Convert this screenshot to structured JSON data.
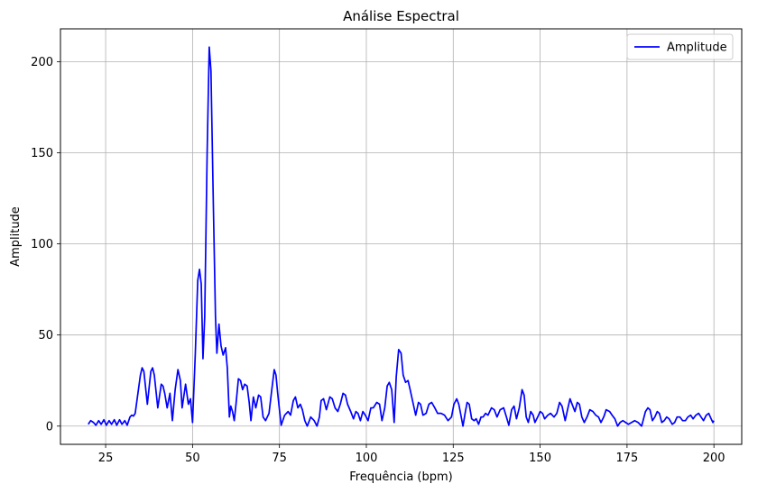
{
  "chart_data": {
    "type": "line",
    "title": "Análise Espectral",
    "xlabel": "Frequência (bpm)",
    "ylabel": "Amplitude",
    "xlim": [
      12,
      208
    ],
    "ylim": [
      -10,
      218
    ],
    "xticks": [
      25,
      50,
      75,
      100,
      125,
      150,
      175,
      200
    ],
    "yticks": [
      0,
      50,
      100,
      150,
      200
    ],
    "grid": true,
    "legend": "top-right",
    "series": [
      {
        "name": "Amplitude",
        "color": "#0000ff",
        "points": [
          [
            20,
            1
          ],
          [
            20.7,
            3
          ],
          [
            21.5,
            2
          ],
          [
            22.2,
            0.5
          ],
          [
            23,
            3
          ],
          [
            23.7,
            1
          ],
          [
            24.5,
            3.5
          ],
          [
            25.2,
            0.5
          ],
          [
            26,
            3
          ],
          [
            26.7,
            1
          ],
          [
            27.5,
            3.5
          ],
          [
            28.2,
            0.5
          ],
          [
            29,
            3.5
          ],
          [
            29.7,
            1
          ],
          [
            30.5,
            3
          ],
          [
            31.2,
            0.5
          ],
          [
            32,
            5
          ],
          [
            32.5,
            6
          ],
          [
            33,
            5.5
          ],
          [
            33.5,
            7
          ],
          [
            34,
            14
          ],
          [
            35,
            28
          ],
          [
            35.5,
            32
          ],
          [
            36,
            30
          ],
          [
            37,
            12
          ],
          [
            38,
            30
          ],
          [
            38.5,
            32
          ],
          [
            39,
            28
          ],
          [
            40,
            10
          ],
          [
            41,
            23
          ],
          [
            41.5,
            22
          ],
          [
            42,
            18
          ],
          [
            42.7,
            10
          ],
          [
            43.5,
            18
          ],
          [
            44.2,
            3
          ],
          [
            45,
            20
          ],
          [
            45.8,
            31
          ],
          [
            46.5,
            25
          ],
          [
            47,
            10
          ],
          [
            48,
            23
          ],
          [
            48.8,
            12
          ],
          [
            49.4,
            15
          ],
          [
            50,
            2
          ],
          [
            50.8,
            40
          ],
          [
            51.5,
            80
          ],
          [
            52,
            86
          ],
          [
            52.5,
            78
          ],
          [
            53,
            37
          ],
          [
            53.5,
            60
          ],
          [
            54.2,
            150
          ],
          [
            54.8,
            208
          ],
          [
            55.3,
            195
          ],
          [
            56,
            120
          ],
          [
            56.6,
            60
          ],
          [
            57,
            40
          ],
          [
            57.6,
            56
          ],
          [
            58.2,
            44
          ],
          [
            58.8,
            39
          ],
          [
            59.5,
            43
          ],
          [
            60,
            32
          ],
          [
            60.6,
            5
          ],
          [
            61,
            11
          ],
          [
            61.5,
            8
          ],
          [
            62,
            3
          ],
          [
            62.5,
            12
          ],
          [
            63.2,
            26
          ],
          [
            63.8,
            25
          ],
          [
            64.4,
            20
          ],
          [
            65,
            23
          ],
          [
            65.7,
            22
          ],
          [
            66.3,
            13
          ],
          [
            66.8,
            3
          ],
          [
            67.5,
            16
          ],
          [
            68.2,
            10
          ],
          [
            69,
            17
          ],
          [
            69.6,
            16
          ],
          [
            70.3,
            5
          ],
          [
            71,
            3
          ],
          [
            72,
            7
          ],
          [
            72.8,
            20
          ],
          [
            73.5,
            31
          ],
          [
            74,
            28
          ],
          [
            74.5,
            18
          ],
          [
            75,
            9
          ],
          [
            75.5,
            0.5
          ],
          [
            76.5,
            6
          ],
          [
            77.5,
            8
          ],
          [
            78.2,
            6
          ],
          [
            79,
            14
          ],
          [
            79.6,
            16
          ],
          [
            80.3,
            10
          ],
          [
            81,
            12
          ],
          [
            81.6,
            9
          ],
          [
            82.3,
            3
          ],
          [
            83,
            0
          ],
          [
            84,
            5
          ],
          [
            85,
            3
          ],
          [
            85.8,
            0
          ],
          [
            86.5,
            5
          ],
          [
            87,
            14
          ],
          [
            87.7,
            15
          ],
          [
            88.5,
            9
          ],
          [
            89.5,
            16
          ],
          [
            90.2,
            15
          ],
          [
            91,
            10
          ],
          [
            91.8,
            8
          ],
          [
            92.5,
            12
          ],
          [
            93.3,
            18
          ],
          [
            94,
            17
          ],
          [
            94.6,
            12
          ],
          [
            95.5,
            8
          ],
          [
            96.3,
            4
          ],
          [
            97,
            8
          ],
          [
            97.6,
            7
          ],
          [
            98.3,
            3
          ],
          [
            99,
            8
          ],
          [
            99.7,
            6
          ],
          [
            100.5,
            3
          ],
          [
            101.3,
            10
          ],
          [
            102,
            10
          ],
          [
            103,
            13
          ],
          [
            103.8,
            12
          ],
          [
            104.5,
            3
          ],
          [
            105.3,
            10
          ],
          [
            106,
            22
          ],
          [
            106.6,
            24
          ],
          [
            107.3,
            20
          ],
          [
            108,
            2
          ],
          [
            108.6,
            27
          ],
          [
            109.3,
            42
          ],
          [
            110,
            40
          ],
          [
            110.6,
            28
          ],
          [
            111.3,
            24
          ],
          [
            112,
            25
          ],
          [
            112.6,
            20
          ],
          [
            113.4,
            13
          ],
          [
            114.2,
            6
          ],
          [
            115,
            13
          ],
          [
            115.6,
            12
          ],
          [
            116.3,
            6
          ],
          [
            117.2,
            7
          ],
          [
            118,
            12
          ],
          [
            118.8,
            13
          ],
          [
            119.7,
            10
          ],
          [
            120.5,
            7
          ],
          [
            121.5,
            7
          ],
          [
            122.5,
            6
          ],
          [
            123.5,
            3
          ],
          [
            124.5,
            5
          ],
          [
            125.2,
            12
          ],
          [
            126,
            15
          ],
          [
            126.6,
            12
          ],
          [
            127.2,
            6
          ],
          [
            127.8,
            0
          ],
          [
            128.5,
            8
          ],
          [
            129,
            13
          ],
          [
            129.6,
            12
          ],
          [
            130.3,
            4
          ],
          [
            131,
            3
          ],
          [
            131.6,
            4
          ],
          [
            132.3,
            1
          ],
          [
            133,
            5
          ],
          [
            133.6,
            5
          ],
          [
            134.3,
            7
          ],
          [
            135,
            6
          ],
          [
            136,
            10
          ],
          [
            136.8,
            9
          ],
          [
            137.6,
            5
          ],
          [
            138.5,
            9
          ],
          [
            139.5,
            10
          ],
          [
            140.3,
            5
          ],
          [
            141,
            0.5
          ],
          [
            141.8,
            9
          ],
          [
            142.5,
            11
          ],
          [
            143.2,
            4
          ],
          [
            144,
            10
          ],
          [
            144.8,
            20
          ],
          [
            145.4,
            17
          ],
          [
            146,
            5
          ],
          [
            146.6,
            2
          ],
          [
            147.3,
            8
          ],
          [
            148,
            6
          ],
          [
            148.5,
            2
          ],
          [
            149.3,
            5
          ],
          [
            150,
            8
          ],
          [
            150.7,
            7
          ],
          [
            151.3,
            4
          ],
          [
            152.2,
            6
          ],
          [
            153,
            7
          ],
          [
            154,
            5
          ],
          [
            154.8,
            7
          ],
          [
            155.6,
            13
          ],
          [
            156.3,
            11
          ],
          [
            157.2,
            3
          ],
          [
            158,
            10
          ],
          [
            158.6,
            15
          ],
          [
            159.2,
            12
          ],
          [
            160,
            8
          ],
          [
            160.7,
            13
          ],
          [
            161.3,
            12
          ],
          [
            162,
            5
          ],
          [
            162.7,
            2
          ],
          [
            163.5,
            5
          ],
          [
            164.3,
            9
          ],
          [
            165.2,
            8
          ],
          [
            166,
            6
          ],
          [
            166.8,
            5
          ],
          [
            167.5,
            2
          ],
          [
            168.3,
            5
          ],
          [
            169,
            9
          ],
          [
            170,
            8
          ],
          [
            170.7,
            6
          ],
          [
            171.5,
            4
          ],
          [
            172.3,
            0
          ],
          [
            173,
            2
          ],
          [
            173.8,
            3
          ],
          [
            174.6,
            2
          ],
          [
            175.4,
            1
          ],
          [
            176.3,
            2
          ],
          [
            177.2,
            3
          ],
          [
            178.2,
            2
          ],
          [
            179.2,
            0
          ],
          [
            180.3,
            8
          ],
          [
            181,
            10
          ],
          [
            181.6,
            9
          ],
          [
            182.3,
            3
          ],
          [
            183,
            5
          ],
          [
            183.7,
            8
          ],
          [
            184.3,
            7
          ],
          [
            185,
            2
          ],
          [
            185.7,
            3
          ],
          [
            186.4,
            5
          ],
          [
            187.1,
            4
          ],
          [
            188,
            1
          ],
          [
            188.7,
            2
          ],
          [
            189.4,
            5
          ],
          [
            190.2,
            5
          ],
          [
            191,
            3
          ],
          [
            191.8,
            3
          ],
          [
            192.5,
            5
          ],
          [
            193.3,
            6
          ],
          [
            194,
            4
          ],
          [
            194.8,
            6
          ],
          [
            195.6,
            7
          ],
          [
            196.3,
            5
          ],
          [
            197,
            3
          ],
          [
            197.8,
            6
          ],
          [
            198.5,
            7
          ],
          [
            199.2,
            4
          ],
          [
            199.7,
            2
          ],
          [
            200,
            3
          ]
        ]
      }
    ]
  }
}
